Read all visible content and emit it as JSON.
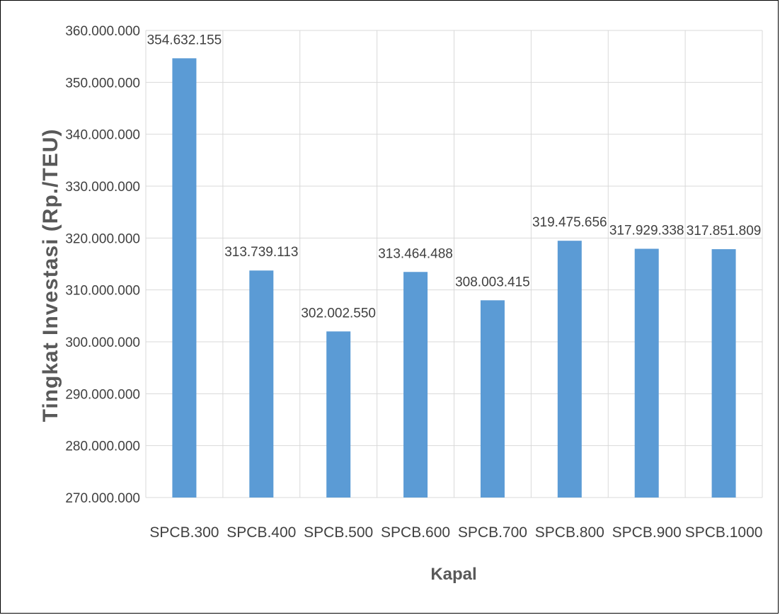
{
  "chart_data": {
    "type": "bar",
    "title": "",
    "xlabel": "Kapal",
    "ylabel": "Tingkat Investasi (Rp./TEU)",
    "categories": [
      "SPCB.300",
      "SPCB.400",
      "SPCB.500",
      "SPCB.600",
      "SPCB.700",
      "SPCB.800",
      "SPCB.900",
      "SPCB.1000"
    ],
    "values": [
      354632155,
      313739113,
      302002550,
      313464488,
      308003415,
      319475656,
      317929338,
      317851809
    ],
    "data_labels": [
      "354.632.155",
      "313.739.113",
      "302.002.550",
      "313.464.488",
      "308.003.415",
      "319.475.656",
      "317.929.338",
      "317.851.809"
    ],
    "ylim": [
      270000000,
      360000000
    ],
    "yticks": [
      270000000,
      280000000,
      290000000,
      300000000,
      310000000,
      320000000,
      330000000,
      340000000,
      350000000,
      360000000
    ],
    "ytick_labels": [
      "270.000.000",
      "280.000.000",
      "290.000.000",
      "300.000.000",
      "310.000.000",
      "320.000.000",
      "330.000.000",
      "340.000.000",
      "350.000.000",
      "360.000.000"
    ],
    "grid": true,
    "legend": "none",
    "bar_color": "#5B9BD5",
    "grid_color": "#D9D9D9"
  }
}
